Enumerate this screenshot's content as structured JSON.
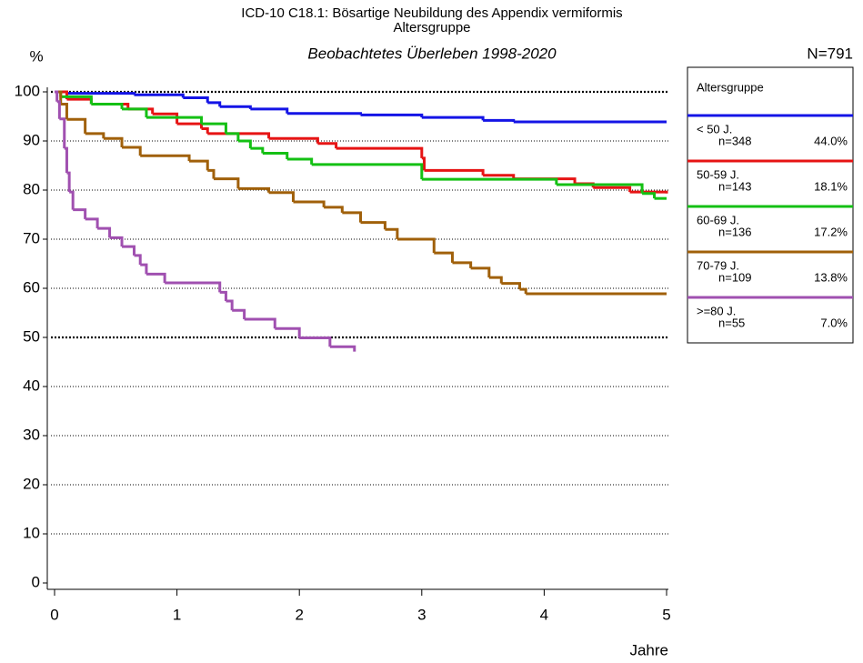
{
  "chart_data": {
    "type": "step",
    "title": "ICD-10 C18.1: Bösartige Neubildung des Appendix vermiformis",
    "subtitle": "Altersgruppe",
    "subtitle2": "Beobachtetes Überleben 1998-2020",
    "y_label": "%",
    "x_label": "Jahre",
    "total_label": "N=791",
    "legend_title": "Altersgruppe",
    "xlim": [
      0,
      5
    ],
    "ylim": [
      0,
      100
    ],
    "xticks": [
      0,
      1,
      2,
      3,
      4,
      5
    ],
    "yticks": [
      0,
      10,
      20,
      30,
      40,
      50,
      60,
      70,
      80,
      90,
      100
    ],
    "grid": true,
    "emphasized_gridlines": [
      50,
      100
    ],
    "legend_position": "right",
    "series": [
      {
        "name": "< 50 J.",
        "n_label": "n=348",
        "share_label": "44.0%",
        "color": "#1414e6",
        "x": [
          0,
          0.1,
          0.65,
          1.05,
          1.25,
          1.35,
          1.6,
          1.9,
          2.5,
          3.0,
          3.5,
          3.75,
          5.0
        ],
        "values": [
          100,
          99.7,
          99.4,
          98.8,
          97.8,
          97,
          96.5,
          95.6,
          95.3,
          94.8,
          94.2,
          93.9,
          93.9
        ]
      },
      {
        "name": "50-59 J.",
        "n_label": "n=143",
        "share_label": "18.1%",
        "color": "#e61414",
        "x": [
          0,
          0.1,
          0.3,
          0.6,
          0.8,
          1.0,
          1.2,
          1.25,
          1.75,
          2.15,
          2.3,
          3.0,
          3.02,
          3.5,
          3.75,
          4.25,
          4.4,
          4.7,
          5.0
        ],
        "values": [
          100,
          98.5,
          97.5,
          96.5,
          95.5,
          93.5,
          92.5,
          91.5,
          90.5,
          89.5,
          88.5,
          86.5,
          84,
          83,
          82.3,
          81.3,
          80.5,
          79.6,
          79.3
        ]
      },
      {
        "name": "60-69 J.",
        "n_label": "n=136",
        "share_label": "17.2%",
        "color": "#14c014",
        "x": [
          0,
          0.05,
          0.3,
          0.55,
          0.75,
          1.2,
          1.4,
          1.5,
          1.6,
          1.7,
          1.9,
          2.1,
          3.0,
          4.1,
          4.8,
          4.9,
          5.0
        ],
        "values": [
          100,
          99,
          97.5,
          96.5,
          94.8,
          93.5,
          91.5,
          90,
          88.5,
          87.5,
          86.3,
          85.2,
          82.2,
          81.1,
          79.3,
          78.3,
          78.3
        ]
      },
      {
        "name": "70-79 J.",
        "n_label": "n=109",
        "share_label": "13.8%",
        "color": "#a0600a",
        "x": [
          0,
          0.05,
          0.1,
          0.25,
          0.4,
          0.55,
          0.7,
          1.1,
          1.25,
          1.3,
          1.5,
          1.75,
          1.95,
          2.2,
          2.35,
          2.5,
          2.7,
          2.8,
          3.1,
          3.25,
          3.4,
          3.55,
          3.65,
          3.8,
          3.85,
          5.0
        ],
        "values": [
          100,
          97.5,
          94.4,
          91.5,
          90.5,
          88.7,
          87,
          85.9,
          84,
          82.3,
          80.3,
          79.5,
          77.6,
          76.5,
          75.4,
          73.4,
          72,
          70,
          67.2,
          65.2,
          64.1,
          62.2,
          61,
          59.8,
          58.9,
          58.9
        ]
      },
      {
        "name": ">=80 J.",
        "n_label": "n=55",
        "share_label": "7.0%",
        "color": "#a050b0",
        "x": [
          0,
          0.02,
          0.04,
          0.08,
          0.1,
          0.12,
          0.15,
          0.25,
          0.35,
          0.45,
          0.55,
          0.65,
          0.7,
          0.75,
          0.9,
          1.35,
          1.4,
          1.45,
          1.55,
          1.8,
          2.0,
          2.25,
          2.45
        ],
        "values": [
          100,
          98,
          94.5,
          88.5,
          83.5,
          79.6,
          76,
          74.1,
          72.2,
          70.3,
          68.5,
          66.7,
          64.8,
          62.9,
          61.1,
          59.2,
          57.4,
          55.5,
          53.7,
          51.8,
          49.9,
          48.1,
          47.1
        ]
      }
    ]
  }
}
